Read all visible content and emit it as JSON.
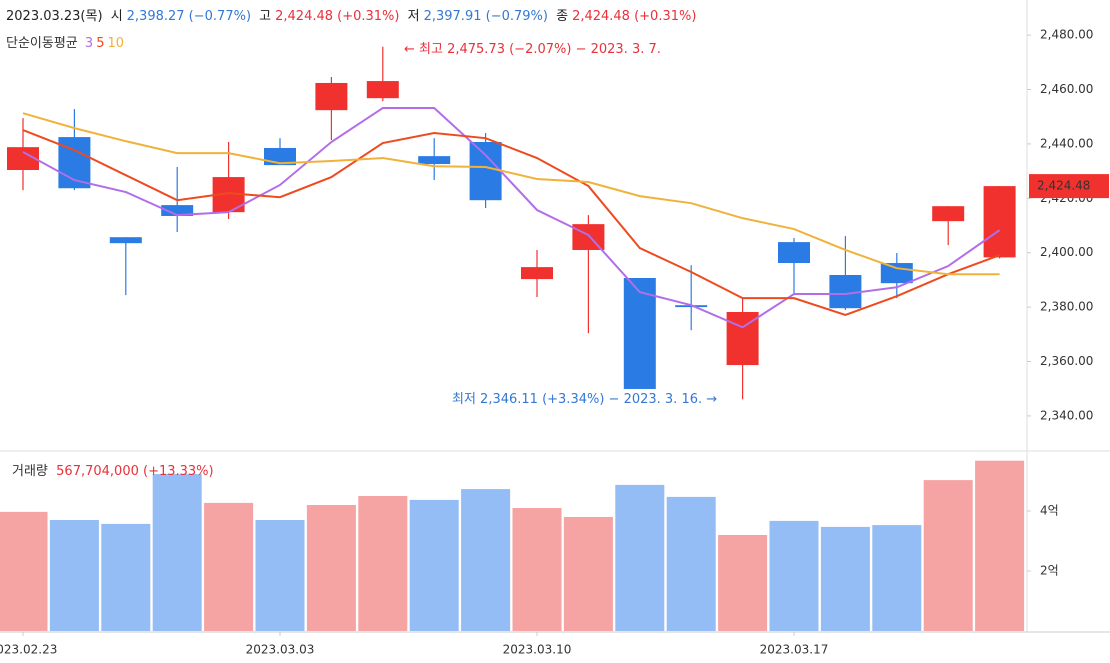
{
  "chart_data": [
    {
      "type": "candlestick",
      "date": "2023.03.23(목)",
      "open_label": "시",
      "open_text": "2,398.27 (−0.77%)",
      "high_label": "고",
      "high_text": "2,424.48 (+0.31%)",
      "low_label": "저",
      "low_text": "2,397.91 (−0.79%)",
      "close_label": "종",
      "close_text": "2,424.48 (+0.31%)",
      "legend_title": "단순이동평균",
      "annotations": [
        "← 최고 2,475.73 (−2.07%) − 2023. 3. 7.",
        "최저 2,346.11 (+3.34%) − 2023. 3. 16. →"
      ],
      "current_price": {
        "value": 2424.48,
        "label": "2,424.48"
      },
      "categories": [
        "2023.02.23",
        null,
        null,
        null,
        null,
        "2023.03.03",
        null,
        null,
        null,
        null,
        "2023.03.10",
        null,
        null,
        null,
        null,
        "2023.03.17",
        null,
        null,
        null,
        null
      ],
      "open": [
        2430.4,
        2442.5,
        2405.7,
        2417.5,
        2414.9,
        2438.5,
        2452.4,
        2456.8,
        2435.5,
        2440.7,
        2390.3,
        2401.0,
        2390.7,
        2380.7,
        2358.7,
        2403.9,
        2391.8,
        2396.2,
        2411.6,
        2398.27
      ],
      "high": [
        2449.5,
        2452.8,
        2405.7,
        2431.5,
        2440.7,
        2442.1,
        2464.6,
        2475.73,
        2442.1,
        2444.0,
        2401.0,
        2413.8,
        2390.7,
        2395.4,
        2383.3,
        2405.4,
        2406.1,
        2399.9,
        2417.1,
        2424.48
      ],
      "low": [
        2423.0,
        2423.0,
        2384.4,
        2407.6,
        2412.4,
        2432.2,
        2441.4,
        2455.7,
        2426.7,
        2416.4,
        2383.7,
        2370.4,
        2349.9,
        2371.5,
        2346.11,
        2384.4,
        2378.9,
        2383.3,
        2402.8,
        2397.91
      ],
      "close": [
        2438.8,
        2423.7,
        2403.5,
        2413.5,
        2427.8,
        2432.2,
        2462.4,
        2463.1,
        2432.6,
        2419.3,
        2394.7,
        2410.5,
        2349.9,
        2380.0,
        2378.2,
        2396.2,
        2379.6,
        2388.8,
        2417.1,
        2424.48
      ],
      "up_color": "#f0312e",
      "down_color": "#2a7be4",
      "series": [
        {
          "name": "3",
          "color": "#b36de8",
          "values": [
            2437.0,
            2426.7,
            2422.3,
            2413.8,
            2414.9,
            2424.9,
            2440.7,
            2453.2,
            2453.2,
            2435.9,
            2415.7,
            2406.5,
            2385.5,
            2380.7,
            2372.6,
            2384.8,
            2384.8,
            2387.3,
            2395.1,
            2408.3
          ]
        },
        {
          "name": "5",
          "color": "#ee4a1e",
          "values": [
            2445.1,
            2437.7,
            2428.5,
            2419.3,
            2421.9,
            2420.4,
            2427.8,
            2440.3,
            2444.0,
            2442.1,
            2434.8,
            2424.5,
            2401.7,
            2392.9,
            2383.3,
            2383.3,
            2377.1,
            2384.0,
            2392.1,
            2399.1
          ]
        },
        {
          "name": "10",
          "color": "#f0b23a",
          "values": [
            2451.3,
            2445.8,
            2441.0,
            2436.6,
            2436.6,
            2432.9,
            2433.7,
            2434.8,
            2431.8,
            2431.5,
            2427.1,
            2426.0,
            2420.8,
            2418.2,
            2412.7,
            2408.7,
            2401.0,
            2394.3,
            2392.1,
            2392.1
          ]
        }
      ],
      "ylim": [
        2327.1,
        2492.9
      ],
      "yticks": [
        {
          "value": 2340,
          "label": "2,340.00"
        },
        {
          "value": 2360,
          "label": "2,360.00"
        },
        {
          "value": 2380,
          "label": "2,380.00"
        },
        {
          "value": 2400,
          "label": "2,400.00"
        },
        {
          "value": 2420,
          "label": "2,420.00"
        },
        {
          "value": 2440,
          "label": "2,440.00"
        },
        {
          "value": 2460,
          "label": "2,460.00"
        },
        {
          "value": 2480,
          "label": "2,480.00"
        }
      ]
    },
    {
      "type": "bar",
      "title": "거래량",
      "value_text": "567,704,000 (+13.33%)",
      "values": [
        397000000,
        370000000,
        357000000,
        523000000,
        427000000,
        370000000,
        420000000,
        450000000,
        437000000,
        473000000,
        410000000,
        380000000,
        487000000,
        447000000,
        320000000,
        367000000,
        347000000,
        353000000,
        503000000,
        567704000
      ],
      "colors": [
        "#f5a3a3",
        "#94bcf5",
        "#94bcf5",
        "#94bcf5",
        "#f5a3a3",
        "#94bcf5",
        "#f5a3a3",
        "#f5a3a3",
        "#94bcf5",
        "#94bcf5",
        "#f5a3a3",
        "#f5a3a3",
        "#94bcf5",
        "#94bcf5",
        "#f5a3a3",
        "#94bcf5",
        "#94bcf5",
        "#94bcf5",
        "#f5a3a3",
        "#f5a3a3"
      ],
      "ylim": [
        0,
        600000000
      ],
      "yticks": [
        {
          "value": 200000000,
          "label": "2억"
        },
        {
          "value": 400000000,
          "label": "4억"
        }
      ]
    }
  ]
}
